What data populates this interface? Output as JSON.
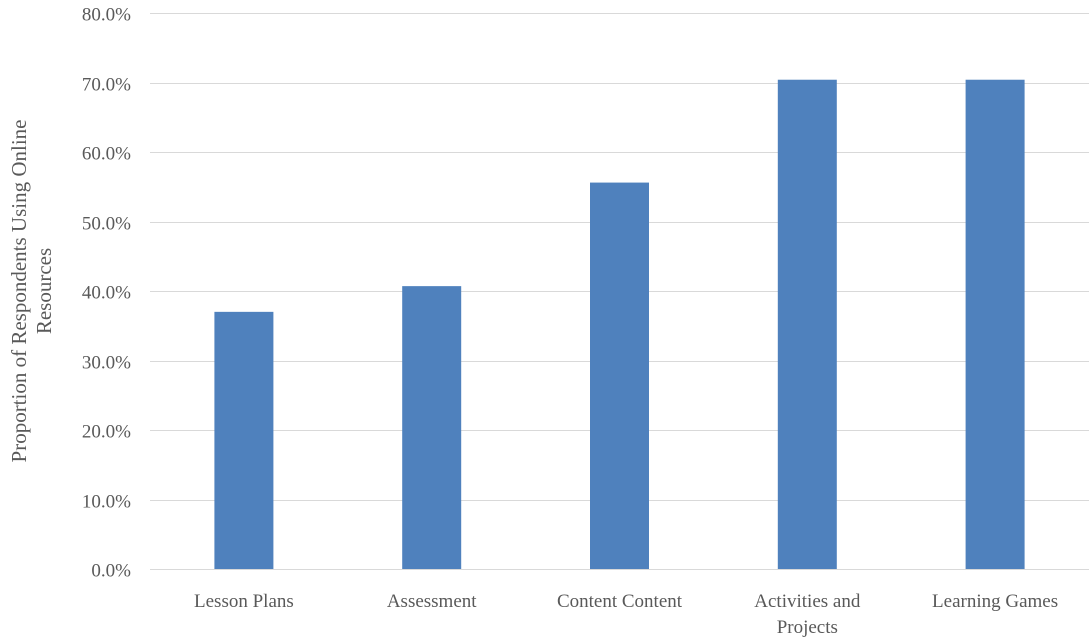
{
  "chart_data": {
    "type": "bar",
    "title": "",
    "xlabel": "",
    "ylabel": "Proportion of Respondents Using Online Resources",
    "ylabel_lines": [
      "Proportion of Respondents Using Online",
      "Resources"
    ],
    "categories": [
      "Lesson Plans",
      "Assessment",
      "Content Content",
      "Activities and Projects",
      "Learning Games"
    ],
    "category_lines": [
      [
        "Lesson Plans"
      ],
      [
        "Assessment"
      ],
      [
        "Content Content"
      ],
      [
        "Activities and",
        "Projects"
      ],
      [
        "Learning Games"
      ]
    ],
    "values": [
      0.37,
      0.407,
      0.556,
      0.704,
      0.704
    ],
    "ylim": [
      0,
      0.8
    ],
    "yticks": [
      0,
      0.1,
      0.2,
      0.3,
      0.4,
      0.5,
      0.6,
      0.7,
      0.8
    ],
    "ytick_labels": [
      "0.0%",
      "10.0%",
      "20.0%",
      "30.0%",
      "40.0%",
      "50.0%",
      "60.0%",
      "70.0%",
      "80.0%"
    ],
    "grid": true,
    "legend": "none",
    "bar_color": "#4F81BD"
  }
}
